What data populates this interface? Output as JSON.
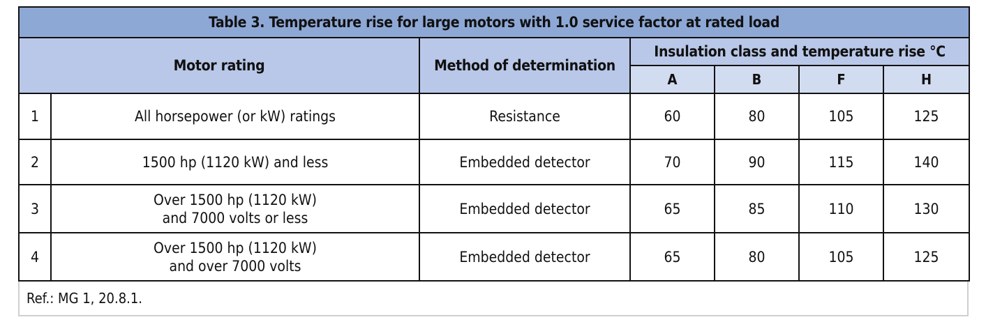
{
  "table": {
    "title": "Table 3. Temperature rise for large motors with 1.0 service factor at rated load",
    "headers": {
      "motor_rating": "Motor rating",
      "method": "Method of determination",
      "insulation": "Insulation class and temperature rise °C",
      "classes": [
        "A",
        "B",
        "F",
        "H"
      ]
    },
    "rows": [
      {
        "num": "1",
        "rating_line1": "All horsepower (or kW) ratings",
        "rating_line2": "",
        "method": "Resistance",
        "values": [
          "60",
          "80",
          "105",
          "125"
        ]
      },
      {
        "num": "2",
        "rating_line1": "1500 hp (1120 kW) and less",
        "rating_line2": "",
        "method": "Embedded detector",
        "values": [
          "70",
          "90",
          "115",
          "140"
        ]
      },
      {
        "num": "3",
        "rating_line1": "Over 1500 hp (1120 kW)",
        "rating_line2": "and 7000 volts or less",
        "method": "Embedded detector",
        "values": [
          "65",
          "85",
          "110",
          "130"
        ]
      },
      {
        "num": "4",
        "rating_line1": "Over 1500 hp (1120 kW)",
        "rating_line2": "and over 7000 volts",
        "method": "Embedded detector",
        "values": [
          "65",
          "80",
          "105",
          "125"
        ]
      }
    ],
    "reference": "Ref.: MG 1, 20.8.1."
  },
  "colors": {
    "title_bg": "#8ea8d6",
    "header_bg": "#b9c8e8",
    "subheader_bg": "#d2dcf1"
  }
}
